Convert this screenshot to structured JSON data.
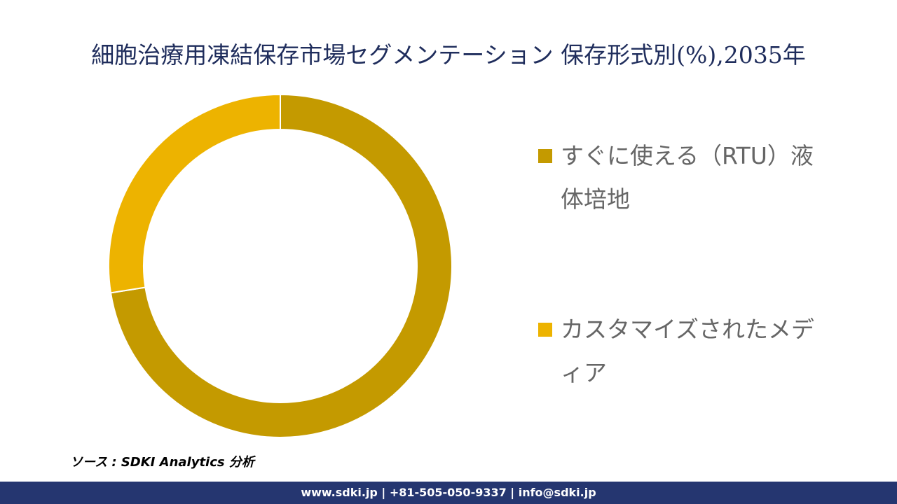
{
  "chart_data": {
    "type": "donut",
    "title": "細胞治療用凍結保存市場セグメンテーション 保存形式別(%),2035年",
    "categories": [
      "すぐに使える（RTU）液体培地",
      "カスタマイズされたメディア"
    ],
    "values": [
      72.5,
      27.5
    ],
    "colors": [
      "#c49a00",
      "#edb300"
    ]
  },
  "source": "ソース : SDKI Analytics 分析",
  "footer": "www.sdki.jp | +81-505-050-9337 | info@sdki.jp"
}
